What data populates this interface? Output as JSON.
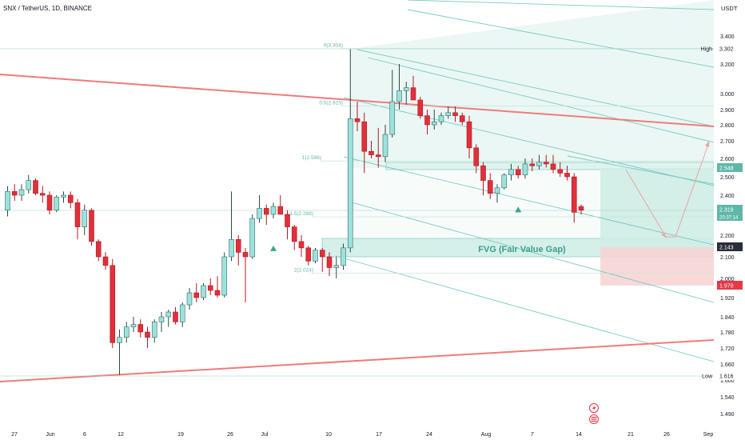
{
  "header": {
    "symbol_line": "SNX / TetherUS, 1D, BINANCE",
    "currency": "USDT"
  },
  "chart_data": {
    "type": "candlestick",
    "symbol": "SNX / TetherUS",
    "interval": "1D",
    "exchange": "BINANCE",
    "x_tick_labels": [
      "27",
      "Jun",
      "6",
      "12",
      "19",
      "26",
      "Jul",
      "10",
      "17",
      "24",
      "Aug",
      "7",
      "14",
      "21",
      "26",
      "Sep"
    ],
    "y_tick_labels": [
      "3.400",
      "3.200",
      "3.000",
      "2.900",
      "2.800",
      "2.700",
      "2.600",
      "2.500",
      "2.400",
      "2.200",
      "2.100",
      "2.000",
      "1.920",
      "1.840",
      "1.780",
      "1.720",
      "1.660",
      "1.600",
      "1.540",
      "1.490"
    ],
    "ylim": [
      1.46,
      3.55
    ],
    "price_tags": [
      {
        "label": "High",
        "value": "3.302"
      },
      {
        "label": "",
        "value": "2.548"
      },
      {
        "label": "",
        "value": "2.319"
      },
      {
        "label": "",
        "value": "20:37:14"
      },
      {
        "label": "",
        "value": "2.143"
      },
      {
        "label": "",
        "value": "1.970"
      },
      {
        "label": "Low",
        "value": "1.616"
      }
    ],
    "fib_levels": [
      {
        "label": "0(3.304)",
        "value": 3.304
      },
      {
        "label": "0.5(2.923)",
        "value": 2.923
      },
      {
        "label": "1(2.586)",
        "value": 2.586
      },
      {
        "label": "1.5(2.288)",
        "value": 2.288
      },
      {
        "label": "2(2.024)",
        "value": 2.024
      }
    ],
    "annotations": [
      "FVG (Fair Value Gap)"
    ],
    "position": {
      "entry": 2.143,
      "target": 2.548,
      "stop": 1.97
    },
    "colors": {
      "up": "#9ce2dc",
      "down": "#e0303a",
      "trendline": "#f07b7b",
      "channel": "#6cc6bd",
      "tag_teal": "#5fb8a7",
      "tag_red": "#e53946"
    },
    "candles": [
      {
        "o": 2.32,
        "h": 2.45,
        "l": 2.29,
        "c": 2.42
      },
      {
        "o": 2.42,
        "h": 2.46,
        "l": 2.37,
        "c": 2.4
      },
      {
        "o": 2.4,
        "h": 2.46,
        "l": 2.37,
        "c": 2.43
      },
      {
        "o": 2.43,
        "h": 2.51,
        "l": 2.41,
        "c": 2.48
      },
      {
        "o": 2.48,
        "h": 2.49,
        "l": 2.4,
        "c": 2.41
      },
      {
        "o": 2.41,
        "h": 2.45,
        "l": 2.36,
        "c": 2.4
      },
      {
        "o": 2.4,
        "h": 2.42,
        "l": 2.3,
        "c": 2.32
      },
      {
        "o": 2.32,
        "h": 2.4,
        "l": 2.31,
        "c": 2.39
      },
      {
        "o": 2.39,
        "h": 2.42,
        "l": 2.36,
        "c": 2.4
      },
      {
        "o": 2.4,
        "h": 2.42,
        "l": 2.33,
        "c": 2.36
      },
      {
        "o": 2.36,
        "h": 2.38,
        "l": 2.18,
        "c": 2.24
      },
      {
        "o": 2.24,
        "h": 2.35,
        "l": 2.2,
        "c": 2.32
      },
      {
        "o": 2.32,
        "h": 2.33,
        "l": 2.15,
        "c": 2.17
      },
      {
        "o": 2.17,
        "h": 2.18,
        "l": 2.08,
        "c": 2.1
      },
      {
        "o": 2.1,
        "h": 2.12,
        "l": 2.04,
        "c": 2.06
      },
      {
        "o": 2.06,
        "h": 2.09,
        "l": 1.72,
        "c": 1.74
      },
      {
        "o": 1.74,
        "h": 1.79,
        "l": 1.62,
        "c": 1.76
      },
      {
        "o": 1.76,
        "h": 1.82,
        "l": 1.74,
        "c": 1.8
      },
      {
        "o": 1.8,
        "h": 1.84,
        "l": 1.78,
        "c": 1.81
      },
      {
        "o": 1.81,
        "h": 1.83,
        "l": 1.76,
        "c": 1.78
      },
      {
        "o": 1.78,
        "h": 1.8,
        "l": 1.72,
        "c": 1.76
      },
      {
        "o": 1.76,
        "h": 1.83,
        "l": 1.74,
        "c": 1.82
      },
      {
        "o": 1.82,
        "h": 1.86,
        "l": 1.78,
        "c": 1.84
      },
      {
        "o": 1.84,
        "h": 1.87,
        "l": 1.8,
        "c": 1.86
      },
      {
        "o": 1.86,
        "h": 1.88,
        "l": 1.81,
        "c": 1.82
      },
      {
        "o": 1.82,
        "h": 1.9,
        "l": 1.8,
        "c": 1.89
      },
      {
        "o": 1.89,
        "h": 1.96,
        "l": 1.87,
        "c": 1.94
      },
      {
        "o": 1.94,
        "h": 1.98,
        "l": 1.9,
        "c": 1.92
      },
      {
        "o": 1.92,
        "h": 1.98,
        "l": 1.91,
        "c": 1.97
      },
      {
        "o": 1.97,
        "h": 2.0,
        "l": 1.93,
        "c": 1.95
      },
      {
        "o": 1.95,
        "h": 2.01,
        "l": 1.92,
        "c": 1.93
      },
      {
        "o": 1.93,
        "h": 2.12,
        "l": 1.92,
        "c": 2.1
      },
      {
        "o": 2.1,
        "h": 2.42,
        "l": 2.08,
        "c": 2.18
      },
      {
        "o": 2.18,
        "h": 2.2,
        "l": 2.06,
        "c": 2.12
      },
      {
        "o": 2.12,
        "h": 2.14,
        "l": 1.9,
        "c": 2.1
      },
      {
        "o": 2.1,
        "h": 2.3,
        "l": 2.09,
        "c": 2.28
      },
      {
        "o": 2.28,
        "h": 2.4,
        "l": 2.26,
        "c": 2.33
      },
      {
        "o": 2.33,
        "h": 2.35,
        "l": 2.25,
        "c": 2.3
      },
      {
        "o": 2.3,
        "h": 2.36,
        "l": 2.28,
        "c": 2.34
      },
      {
        "o": 2.34,
        "h": 2.4,
        "l": 2.3,
        "c": 2.3
      },
      {
        "o": 2.3,
        "h": 2.32,
        "l": 2.18,
        "c": 2.24
      },
      {
        "o": 2.24,
        "h": 2.25,
        "l": 2.13,
        "c": 2.17
      },
      {
        "o": 2.17,
        "h": 2.2,
        "l": 2.1,
        "c": 2.14
      },
      {
        "o": 2.14,
        "h": 2.15,
        "l": 2.06,
        "c": 2.08
      },
      {
        "o": 2.08,
        "h": 2.14,
        "l": 2.07,
        "c": 2.13
      },
      {
        "o": 2.13,
        "h": 2.14,
        "l": 2.03,
        "c": 2.1
      },
      {
        "o": 2.1,
        "h": 2.12,
        "l": 2.01,
        "c": 2.05
      },
      {
        "o": 2.05,
        "h": 2.1,
        "l": 2.0,
        "c": 2.06
      },
      {
        "o": 2.06,
        "h": 2.16,
        "l": 2.04,
        "c": 2.14
      },
      {
        "o": 2.14,
        "h": 3.3,
        "l": 2.12,
        "c": 2.84
      },
      {
        "o": 2.84,
        "h": 2.95,
        "l": 2.76,
        "c": 2.82
      },
      {
        "o": 2.82,
        "h": 2.88,
        "l": 2.52,
        "c": 2.64
      },
      {
        "o": 2.64,
        "h": 2.7,
        "l": 2.6,
        "c": 2.62
      },
      {
        "o": 2.62,
        "h": 2.78,
        "l": 2.55,
        "c": 2.61
      },
      {
        "o": 2.61,
        "h": 2.8,
        "l": 2.58,
        "c": 2.74
      },
      {
        "o": 2.74,
        "h": 3.16,
        "l": 2.72,
        "c": 2.95
      },
      {
        "o": 2.95,
        "h": 3.2,
        "l": 2.9,
        "c": 3.02
      },
      {
        "o": 3.02,
        "h": 3.08,
        "l": 2.93,
        "c": 3.04
      },
      {
        "o": 3.04,
        "h": 3.12,
        "l": 2.96,
        "c": 2.96
      },
      {
        "o": 2.96,
        "h": 2.98,
        "l": 2.84,
        "c": 2.86
      },
      {
        "o": 2.86,
        "h": 2.9,
        "l": 2.74,
        "c": 2.8
      },
      {
        "o": 2.8,
        "h": 2.9,
        "l": 2.77,
        "c": 2.82
      },
      {
        "o": 2.82,
        "h": 2.88,
        "l": 2.8,
        "c": 2.86
      },
      {
        "o": 2.86,
        "h": 2.92,
        "l": 2.84,
        "c": 2.88
      },
      {
        "o": 2.88,
        "h": 2.92,
        "l": 2.82,
        "c": 2.86
      },
      {
        "o": 2.86,
        "h": 2.88,
        "l": 2.8,
        "c": 2.82
      },
      {
        "o": 2.82,
        "h": 2.86,
        "l": 2.6,
        "c": 2.66
      },
      {
        "o": 2.66,
        "h": 2.68,
        "l": 2.52,
        "c": 2.56
      },
      {
        "o": 2.56,
        "h": 2.58,
        "l": 2.4,
        "c": 2.48
      },
      {
        "o": 2.48,
        "h": 2.52,
        "l": 2.38,
        "c": 2.41
      },
      {
        "o": 2.41,
        "h": 2.46,
        "l": 2.36,
        "c": 2.44
      },
      {
        "o": 2.44,
        "h": 2.52,
        "l": 2.43,
        "c": 2.51
      },
      {
        "o": 2.51,
        "h": 2.57,
        "l": 2.48,
        "c": 2.54
      },
      {
        "o": 2.54,
        "h": 2.56,
        "l": 2.49,
        "c": 2.51
      },
      {
        "o": 2.51,
        "h": 2.6,
        "l": 2.49,
        "c": 2.57
      },
      {
        "o": 2.57,
        "h": 2.6,
        "l": 2.53,
        "c": 2.56
      },
      {
        "o": 2.56,
        "h": 2.62,
        "l": 2.54,
        "c": 2.58
      },
      {
        "o": 2.58,
        "h": 2.62,
        "l": 2.55,
        "c": 2.57
      },
      {
        "o": 2.57,
        "h": 2.62,
        "l": 2.52,
        "c": 2.54
      },
      {
        "o": 2.54,
        "h": 2.58,
        "l": 2.5,
        "c": 2.52
      },
      {
        "o": 2.52,
        "h": 2.56,
        "l": 2.48,
        "c": 2.5
      },
      {
        "o": 2.5,
        "h": 2.52,
        "l": 2.26,
        "c": 2.31
      },
      {
        "o": 2.34,
        "h": 2.35,
        "l": 2.3,
        "c": 2.32
      }
    ]
  }
}
